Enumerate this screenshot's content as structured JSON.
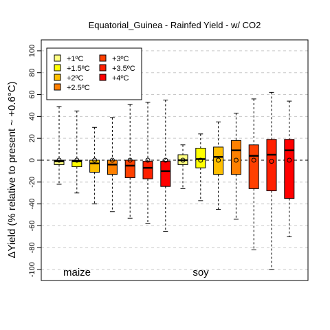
{
  "chart_data": {
    "type": "box",
    "title": "Equatorial_Guinea - Rainfed Yield - w/ CO2",
    "ylabel": "ΔYield (% relative to present ~ +0.6°C)",
    "xlabel": "",
    "ylim": [
      -110,
      110
    ],
    "yticks": [
      -100,
      -80,
      -60,
      -40,
      -20,
      0,
      20,
      40,
      60,
      80,
      100
    ],
    "grid": "horizontal dashed",
    "zero_line": "dashed",
    "legend_position": "top-left",
    "legend": [
      {
        "label": "+1ºC",
        "color": "#ffff80"
      },
      {
        "label": "+1.5ºC",
        "color": "#ffff00"
      },
      {
        "label": "+2ºC",
        "color": "#ffbf00"
      },
      {
        "label": "+2.5ºC",
        "color": "#ff8000"
      },
      {
        "label": "+3ºC",
        "color": "#ff4000"
      },
      {
        "label": "+3.5ºC",
        "color": "#ff2000"
      },
      {
        "label": "+4ºC",
        "color": "#ff0000"
      }
    ],
    "groups": [
      {
        "label": "maize",
        "boxes": [
          {
            "level": "+1ºC",
            "whisker_low": -22,
            "q1": -4,
            "median": -1,
            "q3": 0,
            "whisker_high": 49,
            "mean": 0
          },
          {
            "level": "+1.5ºC",
            "whisker_low": -30,
            "q1": -6,
            "median": -1,
            "q3": 0,
            "whisker_high": 45,
            "mean": 0
          },
          {
            "level": "+2ºC",
            "whisker_low": -40,
            "q1": -11,
            "median": -3,
            "q3": 0,
            "whisker_high": 30,
            "mean": 0
          },
          {
            "level": "+2.5ºC",
            "whisker_low": -47,
            "q1": -13,
            "median": -4,
            "q3": 0,
            "whisker_high": 39,
            "mean": 0
          },
          {
            "level": "+3ºC",
            "whisker_low": -53,
            "q1": -16,
            "median": -5,
            "q3": 0,
            "whisker_high": 51,
            "mean": 0
          },
          {
            "level": "+3.5ºC",
            "whisker_low": -58,
            "q1": -17,
            "median": -7,
            "q3": -1,
            "whisker_high": 53,
            "mean": 0
          },
          {
            "level": "+4ºC",
            "whisker_low": -65,
            "q1": -24,
            "median": -10,
            "q3": -1,
            "whisker_high": 55,
            "mean": 0
          }
        ]
      },
      {
        "label": "soy",
        "boxes": [
          {
            "level": "+1ºC",
            "whisker_low": -26,
            "q1": -4,
            "median": 0,
            "q3": 5,
            "whisker_high": 14,
            "mean": 0
          },
          {
            "level": "+1.5ºC",
            "whisker_low": -37,
            "q1": -7,
            "median": 1,
            "q3": 11,
            "whisker_high": 24,
            "mean": 0
          },
          {
            "level": "+2ºC",
            "whisker_low": -45,
            "q1": -13,
            "median": 3,
            "q3": 12,
            "whisker_high": 35,
            "mean": 0
          },
          {
            "level": "+2.5ºC",
            "whisker_low": -54,
            "q1": -13,
            "median": 9,
            "q3": 18,
            "whisker_high": 43,
            "mean": 0
          },
          {
            "level": "+3ºC",
            "whisker_low": -82,
            "q1": -26,
            "median": 4,
            "q3": 14,
            "whisker_high": 56,
            "mean": 0
          },
          {
            "level": "+3.5ºC",
            "whisker_low": -100,
            "q1": -28,
            "median": 5,
            "q3": 19,
            "whisker_high": 62,
            "mean": -1
          },
          {
            "level": "+4ºC",
            "whisker_low": -70,
            "q1": -35,
            "median": 9,
            "q3": 19,
            "whisker_high": 54,
            "mean": 0
          }
        ]
      }
    ]
  }
}
